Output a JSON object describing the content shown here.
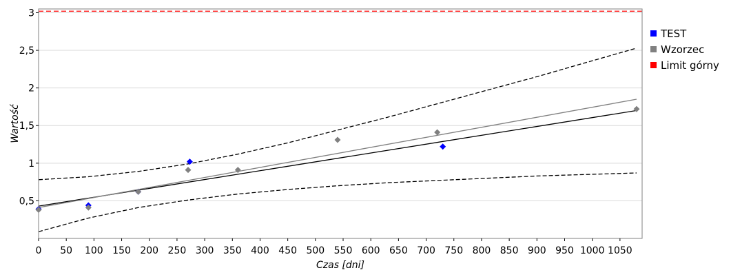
{
  "chart_data": {
    "type": "scatter",
    "title": "",
    "xlabel": "Czas [dni]",
    "ylabel": "Wartość",
    "xlim": [
      0,
      1090
    ],
    "ylim": [
      0,
      3.05
    ],
    "x_ticks": [
      0,
      50,
      100,
      150,
      200,
      250,
      300,
      350,
      400,
      450,
      500,
      550,
      600,
      650,
      700,
      750,
      800,
      850,
      900,
      950,
      1000,
      1050
    ],
    "x_tick_labels": [
      "0",
      "50",
      "100",
      "150",
      "200",
      "250",
      "300",
      "350",
      "400",
      "450",
      "500",
      "550",
      "600",
      "650",
      "700",
      "750",
      "800",
      "850",
      "900",
      "950",
      "1000",
      "1050"
    ],
    "y_ticks": [
      0.5,
      1,
      1.5,
      2,
      2.5,
      3
    ],
    "y_tick_labels": [
      "0,5",
      "1",
      "1,5",
      "2",
      "2,5",
      "3"
    ],
    "grid": true,
    "legend_position": "right",
    "series": [
      {
        "name": "TEST",
        "color": "#0000ff",
        "marker": "diamond",
        "points": [
          [
            0,
            0.39
          ],
          [
            90,
            0.44
          ],
          [
            180,
            0.62
          ],
          [
            273,
            1.02
          ],
          [
            730,
            1.22
          ]
        ]
      },
      {
        "name": "Wzorzec",
        "color": "#808080",
        "marker": "diamond",
        "points": [
          [
            0,
            0.38
          ],
          [
            90,
            0.41
          ],
          [
            180,
            0.62
          ],
          [
            270,
            0.91
          ],
          [
            360,
            0.91
          ],
          [
            540,
            1.31
          ],
          [
            720,
            1.41
          ],
          [
            1080,
            1.72
          ]
        ]
      },
      {
        "name": "Limit górny",
        "color": "#ff0000",
        "marker": "square",
        "constant": 3.02,
        "style": "dashed"
      }
    ],
    "lines": [
      {
        "kind": "regression",
        "series": "TEST",
        "color": "#000000",
        "style": "solid",
        "x": [
          0,
          1080
        ],
        "y": [
          0.43,
          1.7
        ]
      },
      {
        "kind": "regression",
        "series": "Wzorzec",
        "color": "#808080",
        "style": "solid",
        "x": [
          0,
          1080
        ],
        "y": [
          0.41,
          1.85
        ]
      },
      {
        "kind": "confidence_upper",
        "color": "#000000",
        "style": "dashed",
        "x": [
          0,
          90,
          180,
          270,
          360,
          450,
          540,
          630,
          720,
          810,
          900,
          990,
          1080
        ],
        "y": [
          0.78,
          0.82,
          0.89,
          0.99,
          1.12,
          1.27,
          1.44,
          1.61,
          1.79,
          1.97,
          2.15,
          2.34,
          2.53
        ]
      },
      {
        "kind": "confidence_lower",
        "color": "#000000",
        "style": "dashed",
        "x": [
          0,
          90,
          180,
          270,
          360,
          450,
          540,
          630,
          720,
          810,
          900,
          990,
          1080
        ],
        "y": [
          0.09,
          0.27,
          0.41,
          0.51,
          0.59,
          0.65,
          0.7,
          0.74,
          0.77,
          0.8,
          0.83,
          0.85,
          0.87
        ]
      }
    ]
  }
}
